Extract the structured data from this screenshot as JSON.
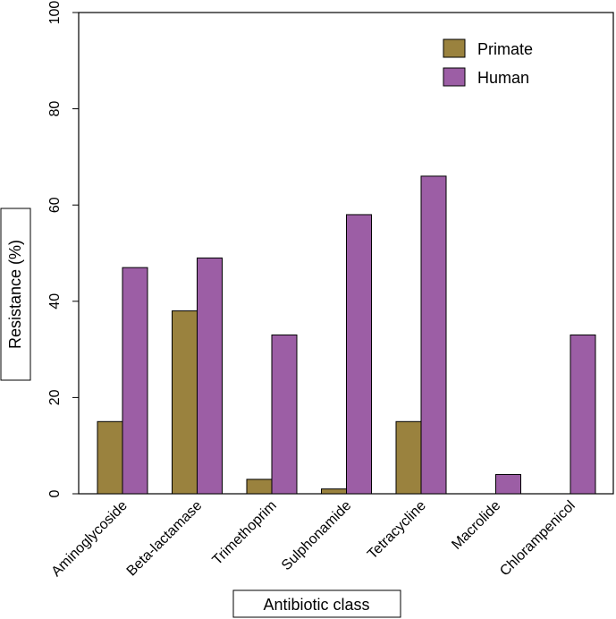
{
  "chart_data": {
    "type": "bar",
    "title": "",
    "xlabel": "Antibiotic class",
    "ylabel": "Resistance (%)",
    "ylim": [
      0,
      100
    ],
    "yticks": [
      0,
      20,
      40,
      60,
      80,
      100
    ],
    "grid": false,
    "legend_position": "top-right",
    "categories": [
      "Aminoglycoside",
      "Beta-lactamase",
      "Trimethoprim",
      "Sulphonamide",
      "Tetracycline",
      "Macrolide",
      "Chlorampenicol"
    ],
    "series": [
      {
        "name": "Primate",
        "color": "#9a823e",
        "values": [
          15,
          38,
          3,
          1,
          15,
          0,
          0
        ]
      },
      {
        "name": "Human",
        "color": "#9c5ea5",
        "values": [
          47,
          49,
          33,
          58,
          66,
          4,
          33
        ]
      }
    ]
  }
}
